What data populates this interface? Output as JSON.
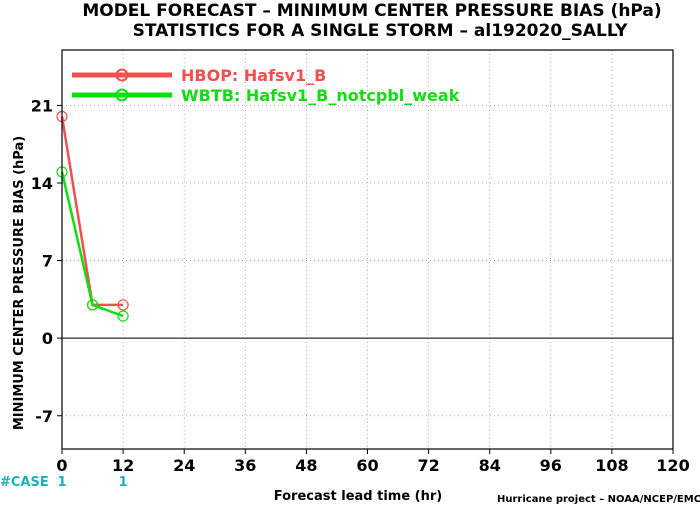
{
  "chart_data": {
    "type": "line",
    "title": "MODEL FORECAST – MINIMUM CENTER PRESSURE BIAS (hPa)",
    "subtitle": "STATISTICS FOR A SINGLE STORM – al192020_SALLY",
    "xlabel": "Forecast lead time (hr)",
    "ylabel": "MINIMUM CENTER PRESSURE BIAS (hPa)",
    "xlim": [
      0,
      120
    ],
    "ylim": [
      -10,
      26
    ],
    "x_ticks": [
      0,
      12,
      24,
      36,
      48,
      60,
      72,
      84,
      96,
      108,
      120
    ],
    "y_ticks": [
      -7,
      0,
      7,
      14,
      21
    ],
    "grid": true,
    "legend_position": "top-left",
    "series": [
      {
        "name": "HBOP: Hafsv1_B",
        "color": "#f05050",
        "x": [
          0,
          6,
          12
        ],
        "y": [
          20,
          3,
          3
        ]
      },
      {
        "name": "WBTB: Hafsv1_B_notcpbl_weak",
        "color": "#10dd10",
        "x": [
          0,
          6,
          12
        ],
        "y": [
          15,
          3,
          2
        ]
      }
    ],
    "case_label": "#CASE",
    "case_counts": [
      {
        "x": 0,
        "count": "1"
      },
      {
        "x": 12,
        "count": "1"
      }
    ],
    "credit": "Hurricane project – NOAA/NCEP/EMC"
  }
}
